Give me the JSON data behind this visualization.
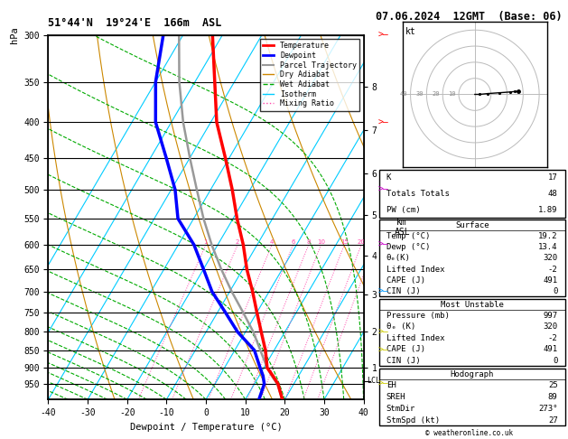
{
  "title_left": "51°44'N  19°24'E  166m  ASL",
  "title_right": "07.06.2024  12GMT  (Base: 06)",
  "xlabel": "Dewpoint / Temperature (°C)",
  "pressure_levels": [
    300,
    350,
    400,
    450,
    500,
    550,
    600,
    650,
    700,
    750,
    800,
    850,
    900,
    950
  ],
  "isotherm_color": "#00ccff",
  "dry_adiabat_color": "#cc8800",
  "wet_adiabat_color": "#00aa00",
  "mixing_ratio_color": "#ff44aa",
  "temp_profile_color": "#ff0000",
  "dewpoint_profile_color": "#0000ff",
  "parcel_color": "#999999",
  "mixing_ratios": [
    1,
    2,
    4,
    6,
    8,
    10,
    15,
    20,
    25
  ],
  "p_profile": [
    997,
    950,
    925,
    900,
    850,
    800,
    750,
    700,
    650,
    600,
    550,
    500,
    450,
    400,
    350,
    300
  ],
  "T_profile": [
    19.2,
    16.0,
    13.5,
    10.8,
    7.8,
    4.0,
    0.0,
    -4.2,
    -9.0,
    -13.5,
    -19.0,
    -24.5,
    -31.0,
    -38.5,
    -45.0,
    -52.5
  ],
  "Td_profile": [
    13.4,
    12.5,
    11.0,
    9.0,
    5.0,
    -2.0,
    -8.0,
    -14.5,
    -20.0,
    -26.0,
    -34.0,
    -39.0,
    -46.0,
    -54.0,
    -60.0,
    -65.0
  ],
  "T_parcel": [
    19.2,
    15.8,
    13.2,
    10.8,
    6.5,
    2.0,
    -3.5,
    -9.5,
    -15.5,
    -21.5,
    -27.5,
    -33.5,
    -40.0,
    -47.0,
    -54.0,
    -61.0
  ],
  "km_hpa": {
    "1": 900,
    "2": 800,
    "3": 707,
    "4": 622,
    "5": 544,
    "6": 474,
    "7": 410,
    "8": 356
  },
  "lcl_p": 940,
  "stats": {
    "K": 17,
    "Totals_Totals": 48,
    "PW_cm": 1.89,
    "Surface_Temp": 19.2,
    "Surface_Dewp": 13.4,
    "theta_e_K": 320,
    "Lifted_Index": -2,
    "CAPE_J": 491,
    "CIN_J": 0,
    "MU_Pressure_mb": 997,
    "MU_theta_e_K": 320,
    "MU_Lifted_Index": -2,
    "MU_CAPE_J": 491,
    "MU_CIN_J": 0,
    "EH": 25,
    "SREH": 89,
    "StmDir": 273,
    "StmSpd_kt": 27
  },
  "wind_barbs_right": [
    {
      "p": 300,
      "color": "#ff0000",
      "u": 10,
      "v": 5
    },
    {
      "p": 400,
      "color": "#ff0000",
      "u": 8,
      "v": 3
    },
    {
      "p": 500,
      "color": "#cc00cc",
      "u": 6,
      "v": 2
    },
    {
      "p": 600,
      "color": "#cc00cc",
      "u": 5,
      "v": 1
    },
    {
      "p": 700,
      "color": "#0099ff",
      "u": 4,
      "v": 1
    },
    {
      "p": 800,
      "color": "#cccc00",
      "u": 3,
      "v": 0
    },
    {
      "p": 850,
      "color": "#cccc00",
      "u": 2,
      "v": 0
    },
    {
      "p": 950,
      "color": "#cccc00",
      "u": 2,
      "v": -1
    }
  ]
}
